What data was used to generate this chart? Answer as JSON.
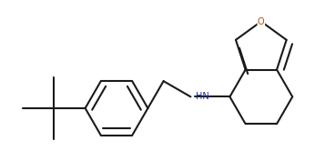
{
  "bg_color": "#ffffff",
  "line_color": "#1a1a1a",
  "bond_lw": 1.5,
  "figsize": [
    3.46,
    1.77
  ],
  "dpi": 100,
  "nh_color": "#1a2fa0",
  "o_color": "#c84800",
  "font_size": 7.0
}
